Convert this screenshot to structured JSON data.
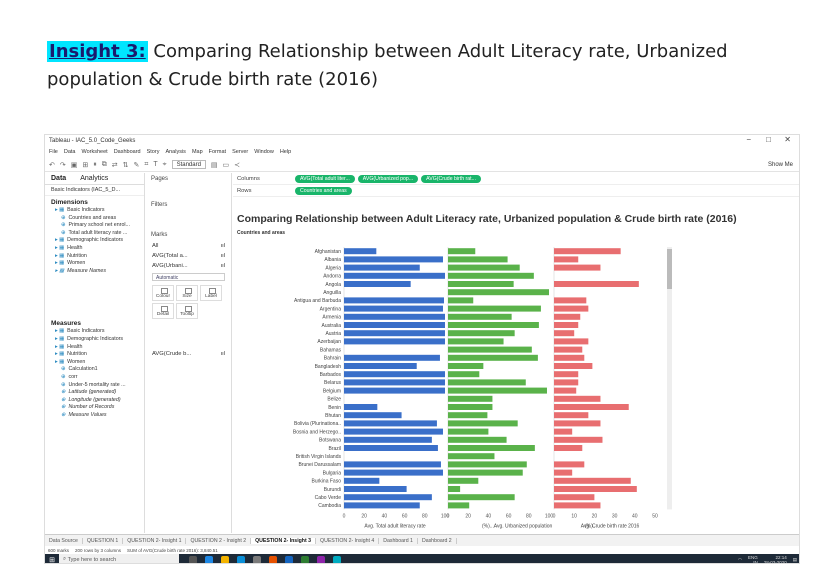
{
  "heading": {
    "insight_label": "Insight 3:",
    "insight_text": " Comparing Relationship between Adult Literacy rate, Urbanized population & Crude birth rate (2016)"
  },
  "window": {
    "title": "Tableau - IAC_5.0_Code_Geeks",
    "minimize": "−",
    "maximize": "□",
    "close": "✕"
  },
  "menu": [
    "File",
    "Data",
    "Worksheet",
    "Dashboard",
    "Story",
    "Analysis",
    "Map",
    "Format",
    "Server",
    "Window",
    "Help"
  ],
  "toolbar": {
    "standard": "Standard",
    "show_me": "Show Me"
  },
  "left_pane": {
    "tab_data": "Data",
    "tab_analytics": "Analytics",
    "data_source": "Basic Indicators (IAC_5_D...",
    "dimensions_title": "Dimensions",
    "dimensions": [
      {
        "label": "Basic Indicators",
        "level": 0,
        "italic": false
      },
      {
        "label": "Countries and areas",
        "level": 1,
        "italic": false
      },
      {
        "label": "Primary school net enrol...",
        "level": 1,
        "italic": false
      },
      {
        "label": "Total adult literacy rate ...",
        "level": 1,
        "italic": false
      },
      {
        "label": "Demographic Indicators",
        "level": 0,
        "italic": false
      },
      {
        "label": "Health",
        "level": 0,
        "italic": false
      },
      {
        "label": "Nutrition",
        "level": 0,
        "italic": false
      },
      {
        "label": "Women",
        "level": 0,
        "italic": false
      },
      {
        "label": "Measure Names",
        "level": 0,
        "italic": true
      }
    ],
    "measures_title": "Measures",
    "measures": [
      {
        "label": "Basic Indicators",
        "level": 0,
        "italic": false
      },
      {
        "label": "Demographic Indicators",
        "level": 0,
        "italic": false
      },
      {
        "label": "Health",
        "level": 0,
        "italic": false
      },
      {
        "label": "Nutrition",
        "level": 0,
        "italic": false
      },
      {
        "label": "Women",
        "level": 0,
        "italic": false
      },
      {
        "label": "Calculation1",
        "level": 1,
        "italic": false
      },
      {
        "label": "corr",
        "level": 1,
        "italic": false
      },
      {
        "label": "Under-5 mortality rate ...",
        "level": 1,
        "italic": false
      },
      {
        "label": "Latitude (generated)",
        "level": 1,
        "italic": true
      },
      {
        "label": "Longitude (generated)",
        "level": 1,
        "italic": true
      },
      {
        "label": "Number of Records",
        "level": 1,
        "italic": true
      },
      {
        "label": "Measure Values",
        "level": 1,
        "italic": true
      }
    ]
  },
  "cards": {
    "pages": "Pages",
    "filters": "Filters",
    "marks": "Marks",
    "marks_rows": [
      "All",
      "AVG(Total a...",
      "AVG(Urbani..."
    ],
    "automatic": "Automatic",
    "buttons": [
      "Colour",
      "Size",
      "Label",
      "Detail",
      "Tooltip"
    ],
    "last_mark": "AVG(Crude b..."
  },
  "shelves": {
    "columns_label": "Columns",
    "rows_label": "Rows",
    "column_pills": [
      "AVG(Total adult liter...",
      "AVG(Urbanized pop...",
      "AVG(Crude birth rat..."
    ],
    "row_pills": [
      "Countries and areas"
    ]
  },
  "chart_data": {
    "type": "bar",
    "title": "Comparing Relationship between Adult Literacy rate, Urbanized population & Crude birth rate (2016)",
    "row_header": "Countries and areas",
    "categories": [
      "Afghanistan",
      "Albania",
      "Algeria",
      "Andorra",
      "Angola",
      "Anguilla",
      "Antigua and Barbuda",
      "Argentina",
      "Armenia",
      "Australia",
      "Austria",
      "Azerbaijan",
      "Bahamas",
      "Bahrain",
      "Bangladesh",
      "Barbados",
      "Belarus",
      "Belgium",
      "Belize",
      "Benin",
      "Bhutan",
      "Bolivia (Plurinationa..",
      "Bosnia and Herzego..",
      "Botswana",
      "Brazil",
      "British Virgin Islands",
      "Brunei Darussalam",
      "Bulgaria",
      "Burkina Faso",
      "Burundi",
      "Cabo Verde",
      "Cambodia"
    ],
    "series": [
      {
        "name": "Avg. Total adult literacy rate (%)",
        "color": "#3a6fc9",
        "xlim": [
          0,
          100
        ],
        "ticks": [
          0,
          20,
          40,
          60,
          80,
          100
        ],
        "values": [
          32,
          98,
          75,
          100,
          66,
          0,
          99,
          98,
          100,
          100,
          100,
          100,
          0,
          95,
          72,
          100,
          100,
          100,
          0,
          33,
          57,
          92,
          98,
          87,
          93,
          0,
          96,
          98,
          35,
          62,
          87,
          75
        ]
      },
      {
        "name": "Avg. Urbanized population (%)",
        "color": "#5ab24a",
        "xlim": [
          0,
          100
        ],
        "ticks": [
          0,
          20,
          40,
          60,
          80,
          100
        ],
        "values": [
          27,
          59,
          71,
          85,
          65,
          100,
          25,
          92,
          63,
          90,
          66,
          55,
          83,
          89,
          35,
          31,
          77,
          98,
          44,
          44,
          39,
          69,
          40,
          58,
          86,
          46,
          78,
          74,
          30,
          12,
          66,
          21
        ]
      },
      {
        "name": "Avg. Crude birth rate 2016",
        "color": "#e86e70",
        "xlim": [
          0,
          50
        ],
        "ticks": [
          0,
          10,
          20,
          30,
          40,
          50
        ],
        "values": [
          33,
          12,
          23,
          0,
          42,
          0,
          16,
          17,
          13,
          12,
          10,
          17,
          14,
          15,
          19,
          12,
          12,
          11,
          23,
          37,
          17,
          23,
          9,
          24,
          14,
          0,
          15,
          9,
          38,
          41,
          20,
          23
        ]
      }
    ],
    "xlabels": [
      "Avg. Total adult literacy rate",
      "(%)...",
      "Avg. Urbanized population",
      "(%)...",
      "Avg. Crude birth rate 2016"
    ]
  },
  "sheets": {
    "items": [
      "Data Source",
      "QUESTION 1",
      "QUESTION 2- Insight 1",
      "QUESTION 2 - Insight 2",
      "QUESTION 2- Insight 3",
      "QUESTION 2- Insight 4",
      "Dashboard 1",
      "Dashboard 2"
    ],
    "active": 4
  },
  "status": {
    "marks": "600 marks",
    "rows": "200 rows by 3 columns",
    "sum": "SUM of AVG(Crude birth rate 2016): 3,840.51"
  },
  "taskbar": {
    "search": "Type here to search",
    "lang": "ENG",
    "region": "IN",
    "time": "22:14",
    "date": "28-03-2020"
  }
}
